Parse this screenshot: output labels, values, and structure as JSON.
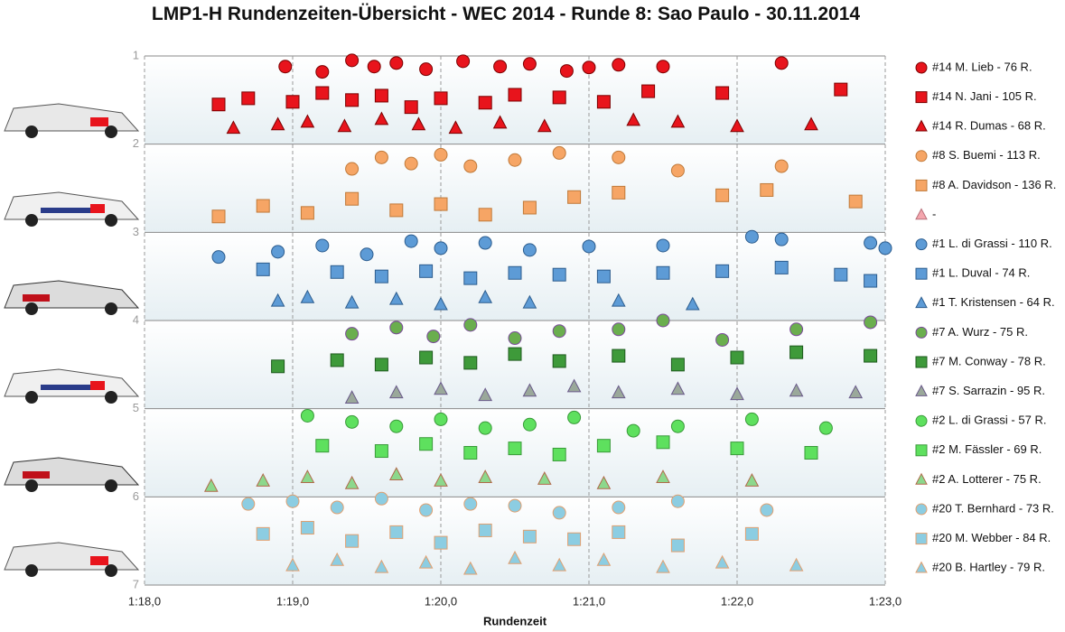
{
  "chart_data": {
    "type": "scatter",
    "title": "LMP1-H Rundenzeiten-Übersicht - WEC 2014 - Runde 8: Sao Paulo - 30.11.2014",
    "xlabel": "Rundenzeit",
    "xlim": [
      78,
      83
    ],
    "xticks": [
      {
        "value": 78,
        "label": "1:18,0"
      },
      {
        "value": 79,
        "label": "1:19,0"
      },
      {
        "value": 80,
        "label": "1:20,0"
      },
      {
        "value": 81,
        "label": "1:21,0"
      },
      {
        "value": 82,
        "label": "1:22,0"
      },
      {
        "value": 83,
        "label": "1:23,0"
      }
    ],
    "ylim": [
      7,
      1
    ],
    "yticks": [
      1,
      2,
      3,
      4,
      5,
      6,
      7
    ],
    "grid": true,
    "legend": "right",
    "series": [
      {
        "name": "#14 M. Lieb - 76 R.",
        "marker": "circle",
        "color": "#e8141c",
        "edgecolor": "#7a0000",
        "x": [
          78.95,
          79.2,
          79.4,
          79.55,
          79.7,
          79.9,
          80.15,
          80.4,
          80.6,
          80.85,
          81.0,
          81.2,
          81.5,
          82.3
        ],
        "values": [
          1.12,
          1.18,
          1.05,
          1.12,
          1.08,
          1.15,
          1.06,
          1.12,
          1.09,
          1.17,
          1.13,
          1.1,
          1.12,
          1.08
        ]
      },
      {
        "name": "#14 N. Jani - 105 R.",
        "marker": "square",
        "color": "#e8141c",
        "edgecolor": "#7a0000",
        "x": [
          78.5,
          78.7,
          79.0,
          79.2,
          79.4,
          79.6,
          79.8,
          80.0,
          80.3,
          80.5,
          80.8,
          81.1,
          81.4,
          81.9,
          82.7
        ],
        "values": [
          1.55,
          1.48,
          1.52,
          1.42,
          1.5,
          1.45,
          1.58,
          1.48,
          1.53,
          1.44,
          1.47,
          1.52,
          1.4,
          1.42,
          1.38
        ]
      },
      {
        "name": "#14 R. Dumas - 68 R.",
        "marker": "triangle",
        "color": "#e8141c",
        "edgecolor": "#7a0000",
        "x": [
          78.6,
          78.9,
          79.1,
          79.35,
          79.6,
          79.85,
          80.1,
          80.4,
          80.7,
          81.3,
          81.6,
          82.0,
          82.5
        ],
        "values": [
          1.82,
          1.78,
          1.75,
          1.8,
          1.72,
          1.78,
          1.82,
          1.76,
          1.8,
          1.73,
          1.75,
          1.8,
          1.78
        ]
      },
      {
        "name": "#8 S. Buemi - 113 R.",
        "marker": "circle",
        "color": "#f6a565",
        "edgecolor": "#c07a3a",
        "x": [
          79.4,
          79.6,
          79.8,
          80.0,
          80.2,
          80.5,
          80.8,
          81.2,
          81.6,
          82.3
        ],
        "values": [
          2.28,
          2.15,
          2.22,
          2.12,
          2.25,
          2.18,
          2.1,
          2.15,
          2.3,
          2.25
        ]
      },
      {
        "name": "#8 A. Davidson - 136 R.",
        "marker": "square",
        "color": "#f6a565",
        "edgecolor": "#c07a3a",
        "x": [
          78.5,
          78.8,
          79.1,
          79.4,
          79.7,
          80.0,
          80.3,
          80.6,
          80.9,
          81.2,
          81.9,
          82.2,
          82.8
        ],
        "values": [
          2.82,
          2.7,
          2.78,
          2.62,
          2.75,
          2.68,
          2.8,
          2.72,
          2.6,
          2.55,
          2.58,
          2.52,
          2.65
        ]
      },
      {
        "name": "-",
        "marker": "triangle",
        "color": "#f4a6ae",
        "edgecolor": "#b8707a",
        "x": [],
        "values": []
      },
      {
        "name": "#1 L. di Grassi - 110 R.",
        "marker": "circle",
        "color": "#5d9bd6",
        "edgecolor": "#2d5d8e",
        "x": [
          78.5,
          78.9,
          79.2,
          79.5,
          79.8,
          80.0,
          80.3,
          80.6,
          81.0,
          81.5,
          82.1,
          82.3,
          82.9,
          83.0
        ],
        "values": [
          3.28,
          3.22,
          3.15,
          3.25,
          3.1,
          3.18,
          3.12,
          3.2,
          3.16,
          3.15,
          3.05,
          3.08,
          3.12,
          3.18
        ]
      },
      {
        "name": "#1 L. Duval - 74 R.",
        "marker": "square",
        "color": "#5d9bd6",
        "edgecolor": "#2d5d8e",
        "x": [
          78.8,
          79.3,
          79.6,
          79.9,
          80.2,
          80.5,
          80.8,
          81.1,
          81.5,
          81.9,
          82.3,
          82.7,
          82.9
        ],
        "values": [
          3.42,
          3.45,
          3.5,
          3.44,
          3.52,
          3.46,
          3.48,
          3.5,
          3.46,
          3.44,
          3.4,
          3.48,
          3.55
        ]
      },
      {
        "name": "#1 T. Kristensen - 64 R.",
        "marker": "triangle",
        "color": "#5d9bd6",
        "edgecolor": "#2d5d8e",
        "x": [
          78.9,
          79.1,
          79.4,
          79.7,
          80.0,
          80.3,
          80.6,
          81.2,
          81.7
        ],
        "values": [
          3.78,
          3.74,
          3.8,
          3.76,
          3.82,
          3.74,
          3.8,
          3.78,
          3.82
        ]
      },
      {
        "name": "#7 A. Wurz - 75 R.",
        "marker": "circle",
        "color": "#6aae4e",
        "edgecolor": "#7a4a9a",
        "x": [
          79.4,
          79.7,
          79.95,
          80.2,
          80.5,
          80.8,
          81.2,
          81.5,
          81.9,
          82.4,
          82.9
        ],
        "values": [
          4.15,
          4.08,
          4.18,
          4.05,
          4.2,
          4.12,
          4.1,
          4.0,
          4.22,
          4.1,
          4.02
        ]
      },
      {
        "name": "#7 M. Conway - 78 R.",
        "marker": "square",
        "color": "#3e9a3a",
        "edgecolor": "#1e5a1e",
        "x": [
          78.9,
          79.3,
          79.6,
          79.9,
          80.2,
          80.5,
          80.8,
          81.2,
          81.6,
          82.0,
          82.4,
          82.9
        ],
        "values": [
          4.52,
          4.45,
          4.5,
          4.42,
          4.48,
          4.38,
          4.46,
          4.4,
          4.5,
          4.42,
          4.36,
          4.4
        ]
      },
      {
        "name": "#7 S. Sarrazin - 95 R.",
        "marker": "triangle",
        "color": "#9aa89a",
        "edgecolor": "#6a5a8a",
        "x": [
          79.4,
          79.7,
          80.0,
          80.3,
          80.6,
          80.9,
          81.2,
          81.6,
          82.0,
          82.4,
          82.8
        ],
        "values": [
          4.88,
          4.82,
          4.78,
          4.85,
          4.8,
          4.75,
          4.82,
          4.78,
          4.84,
          4.8,
          4.82
        ]
      },
      {
        "name": "#2 L. di Grassi - 57 R.",
        "marker": "circle",
        "color": "#5ee05e",
        "edgecolor": "#3a9a3a",
        "x": [
          79.1,
          79.4,
          79.7,
          80.0,
          80.3,
          80.6,
          80.9,
          81.3,
          81.6,
          82.1,
          82.6
        ],
        "values": [
          5.08,
          5.15,
          5.2,
          5.12,
          5.22,
          5.18,
          5.1,
          5.25,
          5.2,
          5.12,
          5.22
        ]
      },
      {
        "name": "#2 M. Fässler - 69 R.",
        "marker": "square",
        "color": "#5ee05e",
        "edgecolor": "#3a9a3a",
        "x": [
          79.2,
          79.6,
          79.9,
          80.2,
          80.5,
          80.8,
          81.1,
          81.5,
          82.0,
          82.5
        ],
        "values": [
          5.42,
          5.48,
          5.4,
          5.5,
          5.45,
          5.52,
          5.42,
          5.38,
          5.45,
          5.5
        ]
      },
      {
        "name": "#2 A. Lotterer - 75 R.",
        "marker": "triangle",
        "color": "#8cd88c",
        "edgecolor": "#b06a4a",
        "x": [
          78.45,
          78.8,
          79.1,
          79.4,
          79.7,
          80.0,
          80.3,
          80.7,
          81.1,
          81.5,
          82.1
        ],
        "values": [
          5.88,
          5.82,
          5.78,
          5.85,
          5.75,
          5.82,
          5.78,
          5.8,
          5.85,
          5.78,
          5.82
        ]
      },
      {
        "name": "#20 T. Bernhard - 73 R.",
        "marker": "circle",
        "color": "#8ccde2",
        "edgecolor": "#e0a070",
        "x": [
          78.7,
          79.0,
          79.3,
          79.6,
          79.9,
          80.2,
          80.5,
          80.8,
          81.2,
          81.6,
          82.2
        ],
        "values": [
          6.08,
          6.05,
          6.12,
          6.02,
          6.15,
          6.08,
          6.1,
          6.18,
          6.12,
          6.05,
          6.15
        ]
      },
      {
        "name": "#20 M. Webber - 84 R.",
        "marker": "square",
        "color": "#8ccde2",
        "edgecolor": "#e0a070",
        "x": [
          78.8,
          79.1,
          79.4,
          79.7,
          80.0,
          80.3,
          80.6,
          80.9,
          81.2,
          81.6,
          82.1
        ],
        "values": [
          6.42,
          6.35,
          6.5,
          6.4,
          6.52,
          6.38,
          6.45,
          6.48,
          6.4,
          6.55,
          6.42
        ]
      },
      {
        "name": "#20 B. Hartley - 79 R.",
        "marker": "triangle",
        "color": "#8ccde2",
        "edgecolor": "#e0a070",
        "x": [
          79.0,
          79.3,
          79.6,
          79.9,
          80.2,
          80.5,
          80.8,
          81.1,
          81.5,
          81.9,
          82.4
        ],
        "values": [
          6.78,
          6.72,
          6.8,
          6.75,
          6.82,
          6.7,
          6.78,
          6.72,
          6.8,
          6.75,
          6.78
        ]
      }
    ]
  }
}
